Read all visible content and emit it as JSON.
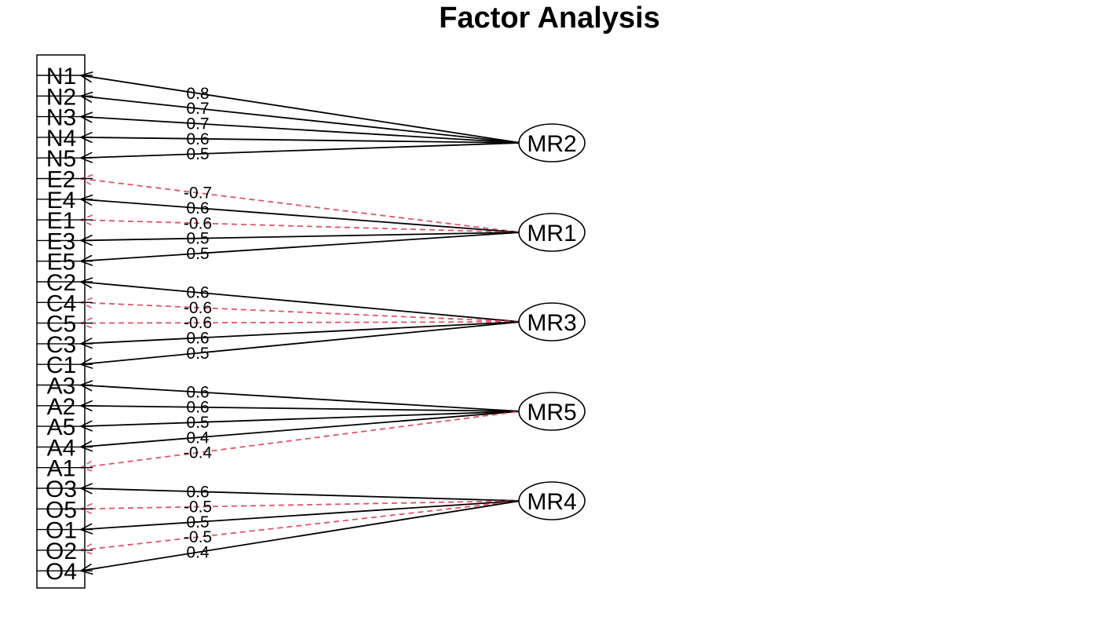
{
  "title": "Factor Analysis",
  "colors": {
    "positive": "#000000",
    "negative": "#df536b"
  },
  "variables": [
    "N1",
    "N2",
    "N3",
    "N4",
    "N5",
    "E2",
    "E4",
    "E1",
    "E3",
    "E5",
    "C2",
    "C4",
    "C5",
    "C3",
    "C1",
    "A3",
    "A2",
    "A5",
    "A4",
    "A1",
    "O3",
    "O5",
    "O1",
    "O2",
    "O4"
  ],
  "factors": [
    "MR2",
    "MR1",
    "MR3",
    "MR5",
    "MR4"
  ],
  "loadings": [
    {
      "var": "N1",
      "factor": "MR2",
      "value": 0.8,
      "label": "0.8"
    },
    {
      "var": "N2",
      "factor": "MR2",
      "value": 0.7,
      "label": "0.7"
    },
    {
      "var": "N3",
      "factor": "MR2",
      "value": 0.7,
      "label": "0.7"
    },
    {
      "var": "N4",
      "factor": "MR2",
      "value": 0.6,
      "label": "0.6"
    },
    {
      "var": "N5",
      "factor": "MR2",
      "value": 0.5,
      "label": "0.5"
    },
    {
      "var": "E2",
      "factor": "MR1",
      "value": -0.7,
      "label": "-0.7"
    },
    {
      "var": "E4",
      "factor": "MR1",
      "value": 0.6,
      "label": "0.6"
    },
    {
      "var": "E1",
      "factor": "MR1",
      "value": -0.6,
      "label": "-0.6"
    },
    {
      "var": "E3",
      "factor": "MR1",
      "value": 0.5,
      "label": "0.5"
    },
    {
      "var": "E5",
      "factor": "MR1",
      "value": 0.5,
      "label": "0.5"
    },
    {
      "var": "C2",
      "factor": "MR3",
      "value": 0.6,
      "label": "0.6"
    },
    {
      "var": "C4",
      "factor": "MR3",
      "value": -0.6,
      "label": "-0.6"
    },
    {
      "var": "C5",
      "factor": "MR3",
      "value": -0.6,
      "label": "-0.6"
    },
    {
      "var": "C3",
      "factor": "MR3",
      "value": 0.6,
      "label": "0.6"
    },
    {
      "var": "C1",
      "factor": "MR3",
      "value": 0.5,
      "label": "0.5"
    },
    {
      "var": "A3",
      "factor": "MR5",
      "value": 0.6,
      "label": "0.6"
    },
    {
      "var": "A2",
      "factor": "MR5",
      "value": 0.6,
      "label": "0.6"
    },
    {
      "var": "A5",
      "factor": "MR5",
      "value": 0.5,
      "label": "0.5"
    },
    {
      "var": "A4",
      "factor": "MR5",
      "value": 0.4,
      "label": "0.4"
    },
    {
      "var": "A1",
      "factor": "MR5",
      "value": -0.4,
      "label": "-0.4"
    },
    {
      "var": "O3",
      "factor": "MR4",
      "value": 0.6,
      "label": "0.6"
    },
    {
      "var": "O5",
      "factor": "MR4",
      "value": -0.5,
      "label": "-0.5"
    },
    {
      "var": "O1",
      "factor": "MR4",
      "value": 0.5,
      "label": "0.5"
    },
    {
      "var": "O2",
      "factor": "MR4",
      "value": -0.5,
      "label": "-0.5"
    },
    {
      "var": "O4",
      "factor": "MR4",
      "value": 0.4,
      "label": "0.4"
    }
  ]
}
